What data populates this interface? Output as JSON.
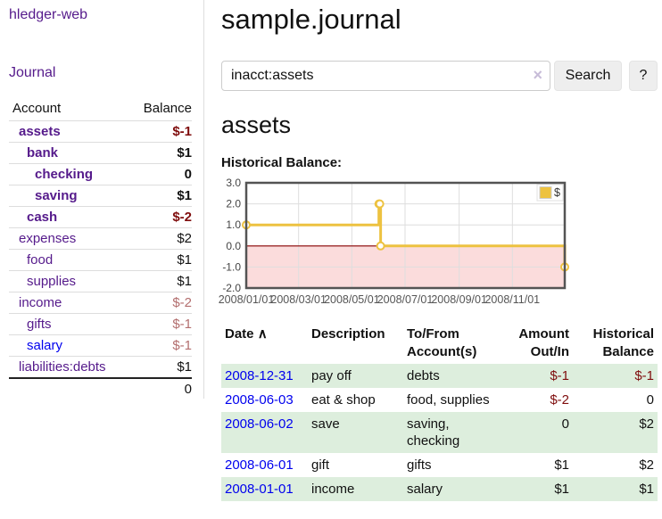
{
  "app": {
    "title": "hledger-web"
  },
  "sidebar": {
    "journal_link": "Journal",
    "accounts": {
      "header_account": "Account",
      "header_balance": "Balance",
      "rows": [
        {
          "name": "assets",
          "depth": 0,
          "bold": true,
          "balance": "$-1",
          "negative": true
        },
        {
          "name": "bank",
          "depth": 1,
          "bold": true,
          "balance": "$1",
          "negative": false
        },
        {
          "name": "checking",
          "depth": 2,
          "bold": true,
          "balance": "0",
          "negative": false
        },
        {
          "name": "saving",
          "depth": 2,
          "bold": true,
          "balance": "$1",
          "negative": false
        },
        {
          "name": "cash",
          "depth": 1,
          "bold": true,
          "balance": "$-2",
          "negative": true
        },
        {
          "name": "expenses",
          "depth": 0,
          "bold": false,
          "balance": "$2",
          "negative": false
        },
        {
          "name": "food",
          "depth": 1,
          "bold": false,
          "balance": "$1",
          "negative": false
        },
        {
          "name": "supplies",
          "depth": 1,
          "bold": false,
          "balance": "$1",
          "negative": false
        },
        {
          "name": "income",
          "depth": 0,
          "bold": false,
          "balance": "$-2",
          "negative": true
        },
        {
          "name": "gifts",
          "depth": 1,
          "bold": false,
          "balance": "$-1",
          "negative": true
        },
        {
          "name": "salary",
          "depth": 1,
          "bold": false,
          "balance": "$-1",
          "negative": true,
          "link_color": "blue"
        },
        {
          "name": "liabilities:debts",
          "depth": 0,
          "bold": false,
          "balance": "$1",
          "negative": false
        }
      ],
      "total": "0"
    }
  },
  "main": {
    "title": "sample.journal",
    "search": {
      "value": "inacct:assets",
      "clear_label": "×",
      "search_button": "Search",
      "help_button": "?"
    },
    "heading": "assets",
    "chart_title": "Historical Balance:",
    "register": {
      "headers": {
        "date": "Date",
        "sort_indicator": "∧",
        "description": "Description",
        "accounts": "To/From Account(s)",
        "amount": "Amount Out/In",
        "balance": "Historical Balance"
      },
      "rows": [
        {
          "date": "2008-12-31",
          "description": "pay off",
          "accounts": "debts",
          "amount": "$-1",
          "amount_negative": true,
          "balance": "$-1",
          "balance_negative": true
        },
        {
          "date": "2008-06-03",
          "description": "eat & shop",
          "accounts": "food, supplies",
          "amount": "$-2",
          "amount_negative": true,
          "balance": "0",
          "balance_negative": false
        },
        {
          "date": "2008-06-02",
          "description": "save",
          "accounts": "saving, checking",
          "amount": "0",
          "amount_negative": false,
          "balance": "$2",
          "balance_negative": false
        },
        {
          "date": "2008-06-01",
          "description": "gift",
          "accounts": "gifts",
          "amount": "$1",
          "amount_negative": false,
          "balance": "$2",
          "balance_negative": false
        },
        {
          "date": "2008-01-01",
          "description": "income",
          "accounts": "salary",
          "amount": "$1",
          "amount_negative": false,
          "balance": "$1",
          "balance_negative": false
        }
      ]
    }
  },
  "colors": {
    "accent_purple": "#551a8b",
    "link_blue": "#0000ee",
    "negative": "#7f0d0d",
    "negative_muted": "#b36e6e",
    "row_stripe_green": "#ddeedd",
    "chart_series": "#edc240",
    "chart_negative_region": "#fbdcdc",
    "chart_zero_line": "#8b0000",
    "chart_border": "#545454",
    "chart_grid": "#dedede"
  },
  "chart_data": {
    "type": "line",
    "title": "Historical Balance:",
    "step": true,
    "x_range": [
      "2008-01-01",
      "2008-12-31"
    ],
    "ylim": [
      -2,
      3
    ],
    "grid": true,
    "legend_position": "top-right",
    "series": [
      {
        "name": "$",
        "color": "#edc240",
        "points": [
          [
            "2008-01-01",
            1
          ],
          [
            "2008-06-01",
            2
          ],
          [
            "2008-06-02",
            2
          ],
          [
            "2008-06-03",
            0
          ],
          [
            "2008-12-31",
            -1
          ]
        ]
      }
    ],
    "y_ticks": [
      {
        "value": 3,
        "label": "3.0"
      },
      {
        "value": 2,
        "label": "2.0"
      },
      {
        "value": 1,
        "label": "1.0"
      },
      {
        "value": 0,
        "label": "0.0"
      },
      {
        "value": -1,
        "label": "-1.0"
      },
      {
        "value": -2,
        "label": "-2.0"
      }
    ],
    "x_ticks": [
      {
        "date": "2008-01-01",
        "label": "2008/01/01"
      },
      {
        "date": "2008-03-01",
        "label": "2008/03/01"
      },
      {
        "date": "2008-05-01",
        "label": "2008/05/01"
      },
      {
        "date": "2008-07-01",
        "label": "2008/07/01"
      },
      {
        "date": "2008-09-01",
        "label": "2008/09/01"
      },
      {
        "date": "2008-11-01",
        "label": "2008/11/01"
      }
    ],
    "negative_region_color": "#fbdcdc",
    "zero_line_color": "#8b0000",
    "border_color": "#545454",
    "grid_color": "#dedede"
  }
}
